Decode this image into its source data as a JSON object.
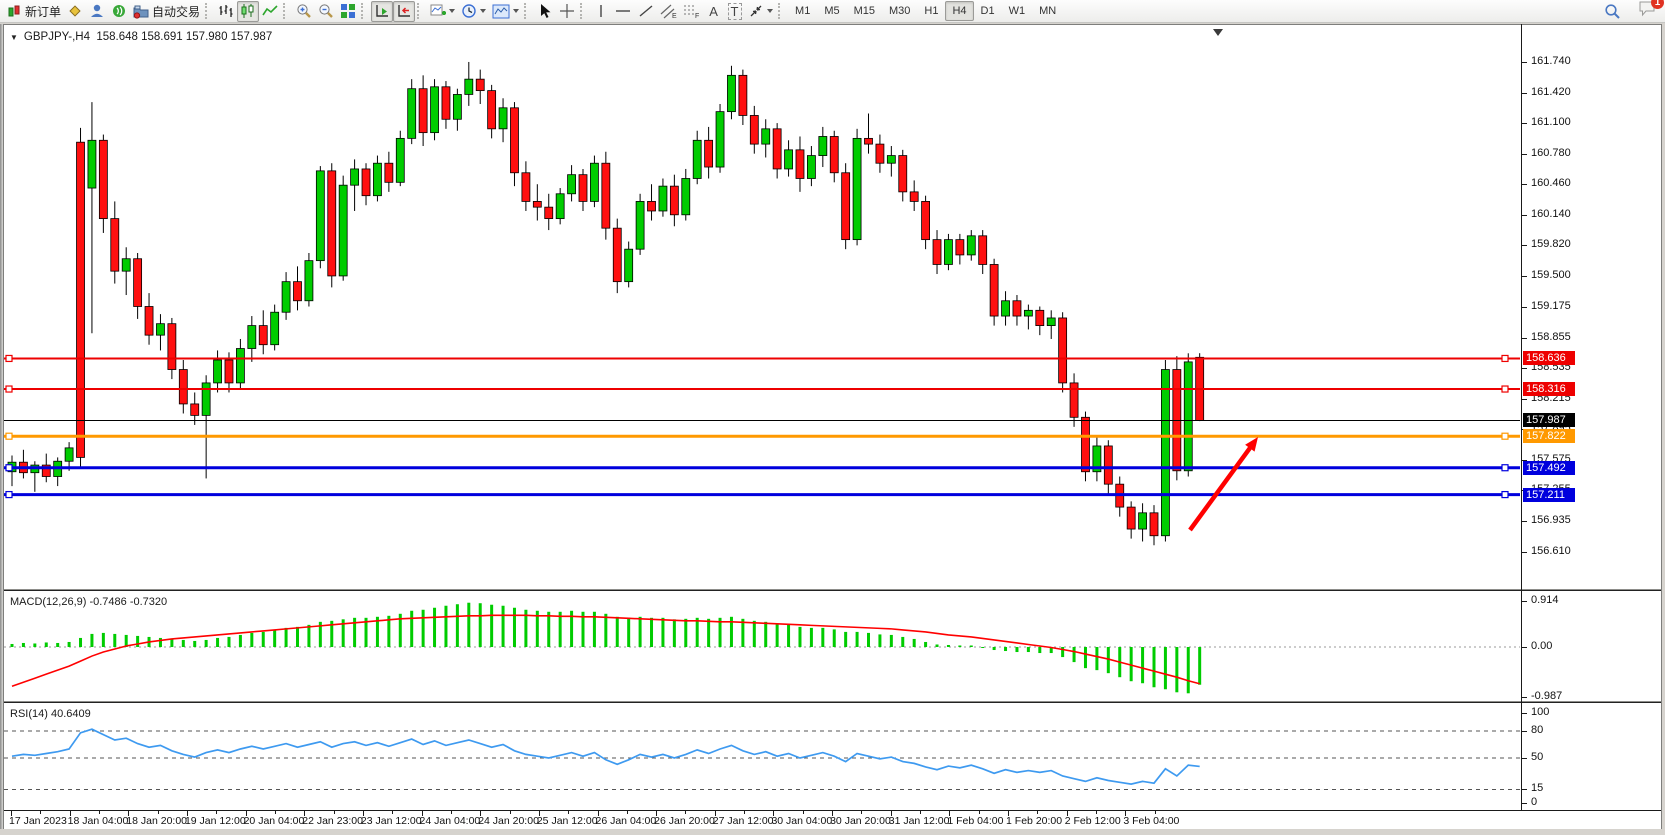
{
  "toolbar": {
    "new_order": "新订单",
    "auto_trading": "自动交易",
    "tool_text_a": "A",
    "tool_text_t": "T",
    "timeframes": [
      "M1",
      "M5",
      "M15",
      "M30",
      "H1",
      "H4",
      "D1",
      "W1",
      "MN"
    ],
    "active_timeframe": "H4",
    "notification_count": "1"
  },
  "chart": {
    "title_symbol": "GBPJPY-,H4",
    "title_ohlc": "158.648 158.691 157.980 157.987",
    "macd_label": "MACD(12,26,9) -0.7486 -0.7320",
    "rsi_label": "RSI(14) 40.6409"
  },
  "chart_data": {
    "type": "candlestick",
    "symbol": "GBPJPY-",
    "timeframe": "H4",
    "last_candle": {
      "open": 158.648,
      "high": 158.691,
      "low": 157.98,
      "close": 157.987
    },
    "ylim": [
      156.212,
      162.106
    ],
    "price_ticks": [
      "161.740",
      "161.420",
      "161.100",
      "160.780",
      "160.460",
      "160.140",
      "159.820",
      "159.500",
      "159.175",
      "158.855",
      "158.535",
      "158.215",
      "157.895",
      "157.575",
      "157.255",
      "156.935",
      "156.610"
    ],
    "up_color": "#00CC00",
    "down_color": "#FF1010",
    "candles": [
      [
        157.45,
        157.62,
        157.3,
        157.55
      ],
      [
        157.55,
        157.68,
        157.38,
        157.44
      ],
      [
        157.44,
        157.56,
        157.24,
        157.52
      ],
      [
        157.52,
        157.64,
        157.34,
        157.4
      ],
      [
        157.4,
        157.6,
        157.3,
        157.56
      ],
      [
        157.56,
        157.76,
        157.46,
        157.7
      ],
      [
        160.9,
        161.05,
        157.48,
        157.6
      ],
      [
        160.42,
        161.32,
        158.9,
        160.92
      ],
      [
        160.92,
        160.98,
        159.95,
        160.1
      ],
      [
        160.1,
        160.28,
        159.42,
        159.55
      ],
      [
        159.55,
        159.8,
        159.3,
        159.68
      ],
      [
        159.68,
        159.74,
        159.05,
        159.18
      ],
      [
        159.18,
        159.32,
        158.78,
        158.88
      ],
      [
        158.88,
        159.1,
        158.72,
        159.0
      ],
      [
        159.0,
        159.06,
        158.42,
        158.52
      ],
      [
        158.52,
        158.62,
        158.06,
        158.16
      ],
      [
        158.16,
        158.28,
        157.94,
        158.04
      ],
      [
        158.04,
        158.46,
        157.38,
        158.38
      ],
      [
        158.38,
        158.72,
        158.28,
        158.62
      ],
      [
        158.62,
        158.7,
        158.28,
        158.38
      ],
      [
        158.38,
        158.84,
        158.32,
        158.74
      ],
      [
        158.74,
        159.08,
        158.6,
        158.98
      ],
      [
        158.98,
        159.14,
        158.68,
        158.78
      ],
      [
        158.78,
        159.2,
        158.72,
        159.12
      ],
      [
        159.12,
        159.54,
        159.04,
        159.44
      ],
      [
        159.44,
        159.6,
        159.14,
        159.24
      ],
      [
        159.24,
        159.74,
        159.18,
        159.66
      ],
      [
        159.66,
        160.65,
        159.58,
        160.6
      ],
      [
        160.6,
        160.68,
        159.38,
        159.5
      ],
      [
        159.5,
        160.55,
        159.45,
        160.45
      ],
      [
        160.45,
        160.72,
        160.18,
        160.62
      ],
      [
        160.62,
        160.68,
        160.24,
        160.34
      ],
      [
        160.34,
        160.76,
        160.28,
        160.68
      ],
      [
        160.68,
        160.8,
        160.38,
        160.48
      ],
      [
        160.48,
        161.02,
        160.44,
        160.94
      ],
      [
        160.94,
        161.56,
        160.88,
        161.46
      ],
      [
        161.46,
        161.6,
        160.86,
        161.0
      ],
      [
        161.0,
        161.56,
        160.92,
        161.48
      ],
      [
        161.48,
        161.54,
        161.04,
        161.14
      ],
      [
        161.14,
        161.46,
        161.02,
        161.4
      ],
      [
        161.4,
        161.74,
        161.28,
        161.56
      ],
      [
        161.56,
        161.66,
        161.3,
        161.44
      ],
      [
        161.44,
        161.5,
        160.94,
        161.04
      ],
      [
        161.04,
        161.36,
        160.9,
        161.26
      ],
      [
        161.26,
        161.32,
        160.44,
        160.58
      ],
      [
        160.58,
        160.7,
        160.18,
        160.28
      ],
      [
        160.28,
        160.46,
        160.08,
        160.22
      ],
      [
        160.22,
        160.36,
        159.98,
        160.1
      ],
      [
        160.1,
        160.42,
        160.04,
        160.36
      ],
      [
        160.36,
        160.66,
        160.28,
        160.56
      ],
      [
        160.56,
        160.62,
        160.18,
        160.28
      ],
      [
        160.28,
        160.76,
        160.22,
        160.68
      ],
      [
        160.68,
        160.8,
        159.88,
        160.0
      ],
      [
        160.0,
        160.1,
        159.32,
        159.44
      ],
      [
        159.44,
        159.86,
        159.38,
        159.78
      ],
      [
        159.78,
        160.36,
        159.72,
        160.28
      ],
      [
        160.28,
        160.46,
        160.08,
        160.18
      ],
      [
        160.18,
        160.52,
        160.12,
        160.44
      ],
      [
        160.44,
        160.56,
        160.02,
        160.14
      ],
      [
        160.14,
        160.62,
        160.08,
        160.52
      ],
      [
        160.52,
        161.02,
        160.46,
        160.92
      ],
      [
        160.92,
        161.06,
        160.52,
        160.64
      ],
      [
        160.64,
        161.3,
        160.58,
        161.22
      ],
      [
        161.22,
        161.7,
        161.14,
        161.6
      ],
      [
        161.6,
        161.66,
        161.08,
        161.18
      ],
      [
        161.18,
        161.28,
        160.78,
        160.88
      ],
      [
        160.88,
        161.14,
        160.74,
        161.04
      ],
      [
        161.04,
        161.1,
        160.52,
        160.62
      ],
      [
        160.62,
        160.92,
        160.54,
        160.82
      ],
      [
        160.82,
        160.96,
        160.38,
        160.52
      ],
      [
        160.52,
        160.86,
        160.44,
        160.76
      ],
      [
        160.76,
        161.06,
        160.64,
        160.96
      ],
      [
        160.96,
        161.02,
        160.48,
        160.58
      ],
      [
        160.58,
        160.68,
        159.78,
        159.88
      ],
      [
        159.88,
        161.04,
        159.82,
        160.94
      ],
      [
        160.94,
        161.2,
        160.78,
        160.88
      ],
      [
        160.88,
        160.98,
        160.58,
        160.68
      ],
      [
        160.68,
        160.86,
        160.54,
        160.76
      ],
      [
        160.76,
        160.82,
        160.28,
        160.38
      ],
      [
        160.38,
        160.5,
        160.18,
        160.28
      ],
      [
        160.28,
        160.34,
        159.78,
        159.88
      ],
      [
        159.88,
        159.98,
        159.52,
        159.62
      ],
      [
        159.62,
        159.94,
        159.56,
        159.88
      ],
      [
        159.88,
        159.94,
        159.62,
        159.72
      ],
      [
        159.72,
        159.98,
        159.66,
        159.92
      ],
      [
        159.92,
        159.98,
        159.52,
        159.62
      ],
      [
        159.62,
        159.68,
        158.98,
        159.08
      ],
      [
        159.08,
        159.34,
        158.98,
        159.24
      ],
      [
        159.24,
        159.3,
        158.98,
        159.08
      ],
      [
        159.08,
        159.2,
        158.94,
        159.14
      ],
      [
        159.14,
        159.18,
        158.88,
        158.98
      ],
      [
        158.98,
        159.14,
        158.84,
        159.06
      ],
      [
        159.06,
        159.12,
        158.28,
        158.38
      ],
      [
        158.38,
        158.48,
        157.92,
        158.02
      ],
      [
        158.02,
        158.08,
        157.35,
        157.45
      ],
      [
        157.45,
        157.82,
        157.35,
        157.72
      ],
      [
        157.72,
        157.78,
        157.22,
        157.32
      ],
      [
        157.32,
        157.4,
        156.98,
        157.08
      ],
      [
        157.08,
        157.14,
        156.75,
        156.85
      ],
      [
        156.85,
        157.12,
        156.72,
        157.02
      ],
      [
        157.02,
        157.1,
        156.68,
        156.78
      ],
      [
        156.78,
        158.62,
        156.72,
        158.52
      ],
      [
        158.52,
        158.66,
        157.36,
        157.46
      ],
      [
        157.46,
        158.69,
        157.4,
        158.6
      ],
      [
        158.648,
        158.691,
        157.98,
        157.987
      ]
    ],
    "hlines": [
      {
        "price": 158.636,
        "label": "158.636",
        "color": "#EE0000",
        "width": 2,
        "markers": true
      },
      {
        "price": 158.316,
        "label": "158.316",
        "color": "#EE0000",
        "width": 2,
        "markers": true
      },
      {
        "price": 157.987,
        "label": "157.987",
        "color": "#000000",
        "width": 1,
        "markers": false
      },
      {
        "price": 157.822,
        "label": "157.822",
        "color": "#FF9900",
        "width": 3,
        "markers": true
      },
      {
        "price": 157.492,
        "label": "157.492",
        "color": "#0000DD",
        "width": 3,
        "markers": true
      },
      {
        "price": 157.211,
        "label": "157.211",
        "color": "#0000DD",
        "width": 3,
        "markers": true
      }
    ],
    "arrow_annotation": {
      "from": [
        1186,
        503
      ],
      "to": [
        1254,
        410
      ],
      "color": "#FF0000"
    },
    "shift_marker_x": 1214,
    "x_labels": [
      "17 Jan 2023",
      "18 Jan 04:00",
      "18 Jan 20:00",
      "19 Jan 12:00",
      "20 Jan 04:00",
      "22 Jan 23:00",
      "23 Jan 12:00",
      "24 Jan 04:00",
      "24 Jan 20:00",
      "25 Jan 12:00",
      "26 Jan 04:00",
      "26 Jan 20:00",
      "27 Jan 12:00",
      "30 Jan 04:00",
      "30 Jan 20:00",
      "31 Jan 12:00",
      "1 Feb 04:00",
      "1 Feb 20:00",
      "2 Feb 12:00",
      "3 Feb 04:00"
    ],
    "macd": {
      "label": "MACD(12,26,9) -0.7486 -0.7320",
      "params": "12,26,9",
      "macd_value": -0.7486,
      "signal_value": -0.732,
      "ticks": [
        "0.914",
        "0.00",
        "-0.987"
      ],
      "ylim": [
        -1.093,
        1.093
      ],
      "hist_color": "#00CC00",
      "signal_color": "#FF0000",
      "hist": [
        0.06,
        0.08,
        0.07,
        0.09,
        0.08,
        0.1,
        0.18,
        0.26,
        0.28,
        0.26,
        0.24,
        0.22,
        0.2,
        0.18,
        0.16,
        0.14,
        0.12,
        0.14,
        0.18,
        0.2,
        0.24,
        0.28,
        0.3,
        0.34,
        0.38,
        0.4,
        0.44,
        0.5,
        0.52,
        0.55,
        0.58,
        0.58,
        0.6,
        0.62,
        0.66,
        0.72,
        0.74,
        0.78,
        0.82,
        0.85,
        0.88,
        0.87,
        0.84,
        0.82,
        0.78,
        0.74,
        0.72,
        0.7,
        0.7,
        0.72,
        0.7,
        0.7,
        0.66,
        0.6,
        0.58,
        0.6,
        0.58,
        0.58,
        0.55,
        0.56,
        0.58,
        0.56,
        0.58,
        0.6,
        0.56,
        0.52,
        0.5,
        0.46,
        0.44,
        0.4,
        0.38,
        0.38,
        0.35,
        0.3,
        0.3,
        0.28,
        0.25,
        0.24,
        0.2,
        0.16,
        0.1,
        0.05,
        0.04,
        0.03,
        0.03,
        0.0,
        -0.06,
        -0.08,
        -0.1,
        -0.1,
        -0.12,
        -0.12,
        -0.2,
        -0.3,
        -0.42,
        -0.46,
        -0.52,
        -0.6,
        -0.68,
        -0.72,
        -0.8,
        -0.84,
        -0.9,
        -0.92,
        -0.75
      ],
      "signal": [
        -0.78,
        -0.7,
        -0.62,
        -0.54,
        -0.46,
        -0.38,
        -0.28,
        -0.18,
        -0.1,
        -0.04,
        0.02,
        0.06,
        0.1,
        0.13,
        0.16,
        0.18,
        0.2,
        0.22,
        0.24,
        0.26,
        0.28,
        0.3,
        0.32,
        0.34,
        0.36,
        0.38,
        0.4,
        0.42,
        0.44,
        0.46,
        0.48,
        0.5,
        0.52,
        0.54,
        0.56,
        0.57,
        0.58,
        0.59,
        0.6,
        0.61,
        0.62,
        0.62,
        0.63,
        0.63,
        0.63,
        0.63,
        0.62,
        0.62,
        0.61,
        0.61,
        0.6,
        0.6,
        0.59,
        0.58,
        0.57,
        0.56,
        0.55,
        0.54,
        0.53,
        0.52,
        0.52,
        0.51,
        0.5,
        0.5,
        0.49,
        0.48,
        0.47,
        0.46,
        0.45,
        0.44,
        0.43,
        0.42,
        0.41,
        0.4,
        0.39,
        0.38,
        0.37,
        0.36,
        0.34,
        0.32,
        0.3,
        0.27,
        0.24,
        0.22,
        0.2,
        0.17,
        0.14,
        0.11,
        0.08,
        0.05,
        0.02,
        -0.01,
        -0.05,
        -0.09,
        -0.14,
        -0.19,
        -0.24,
        -0.3,
        -0.36,
        -0.42,
        -0.48,
        -0.54,
        -0.6,
        -0.67,
        -0.73
      ]
    },
    "rsi": {
      "label": "RSI(14) 40.6409",
      "period": 14,
      "value": 40.6409,
      "ticks": [
        "100",
        "80",
        "50",
        "15",
        "0"
      ],
      "levels": [
        80,
        50,
        15
      ],
      "ylim": [
        -7.8,
        110
      ],
      "line_color": "#3E9AF0",
      "values": [
        52,
        54,
        53,
        55,
        57,
        60,
        78,
        82,
        76,
        70,
        72,
        66,
        62,
        64,
        58,
        54,
        51,
        56,
        59,
        56,
        60,
        63,
        60,
        63,
        66,
        62,
        65,
        68,
        62,
        66,
        68,
        64,
        67,
        63,
        67,
        71,
        65,
        69,
        64,
        67,
        70,
        66,
        62,
        65,
        58,
        54,
        52,
        50,
        53,
        56,
        52,
        56,
        48,
        43,
        48,
        54,
        51,
        54,
        50,
        54,
        59,
        55,
        60,
        64,
        58,
        54,
        57,
        52,
        55,
        50,
        53,
        56,
        52,
        46,
        55,
        52,
        49,
        51,
        46,
        44,
        40,
        37,
        41,
        39,
        42,
        38,
        33,
        37,
        34,
        36,
        34,
        36,
        30,
        27,
        24,
        28,
        25,
        23,
        21,
        24,
        22,
        38,
        30,
        42,
        40.64
      ]
    }
  }
}
